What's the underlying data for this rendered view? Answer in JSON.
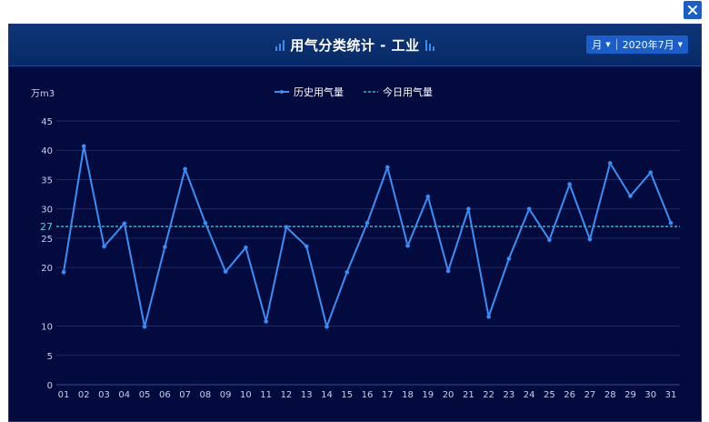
{
  "window": {
    "close_icon": "close-icon"
  },
  "header": {
    "title": "用气分类统计 - 工业",
    "period_select": "月",
    "date_select": "2020年7月",
    "colors": {
      "header_bg": "#0e3577",
      "select_bg": "#1a5fc9",
      "panel_bg": "#020a3e"
    }
  },
  "chart_data": {
    "type": "line",
    "ylabel": "万m3",
    "x": [
      "01",
      "02",
      "03",
      "04",
      "05",
      "06",
      "07",
      "08",
      "09",
      "10",
      "11",
      "12",
      "13",
      "14",
      "15",
      "16",
      "17",
      "18",
      "19",
      "20",
      "21",
      "22",
      "23",
      "24",
      "25",
      "26",
      "27",
      "28",
      "29",
      "30",
      "31"
    ],
    "series": [
      {
        "name": "历史用气量",
        "color": "#3d8ef5",
        "values": [
          19.2,
          40.7,
          23.6,
          27.5,
          9.9,
          23.5,
          36.8,
          27.6,
          19.3,
          23.4,
          10.8,
          26.9,
          23.6,
          9.9,
          19.2,
          27.6,
          37.1,
          23.7,
          32.1,
          19.4,
          30.0,
          11.6,
          21.5,
          30.0,
          24.7,
          34.2,
          24.8,
          37.8,
          32.2,
          36.2,
          27.6
        ]
      },
      {
        "name": "今日用气量",
        "color": "#3fd6d6",
        "style": "dashed",
        "constant": 27,
        "label": "27"
      }
    ],
    "yticks": [
      "0",
      "5",
      "10",
      "20",
      "25",
      "30",
      "35",
      "40",
      "45"
    ],
    "ylim": [
      0,
      45
    ],
    "grid": true,
    "legend": "top-center"
  }
}
